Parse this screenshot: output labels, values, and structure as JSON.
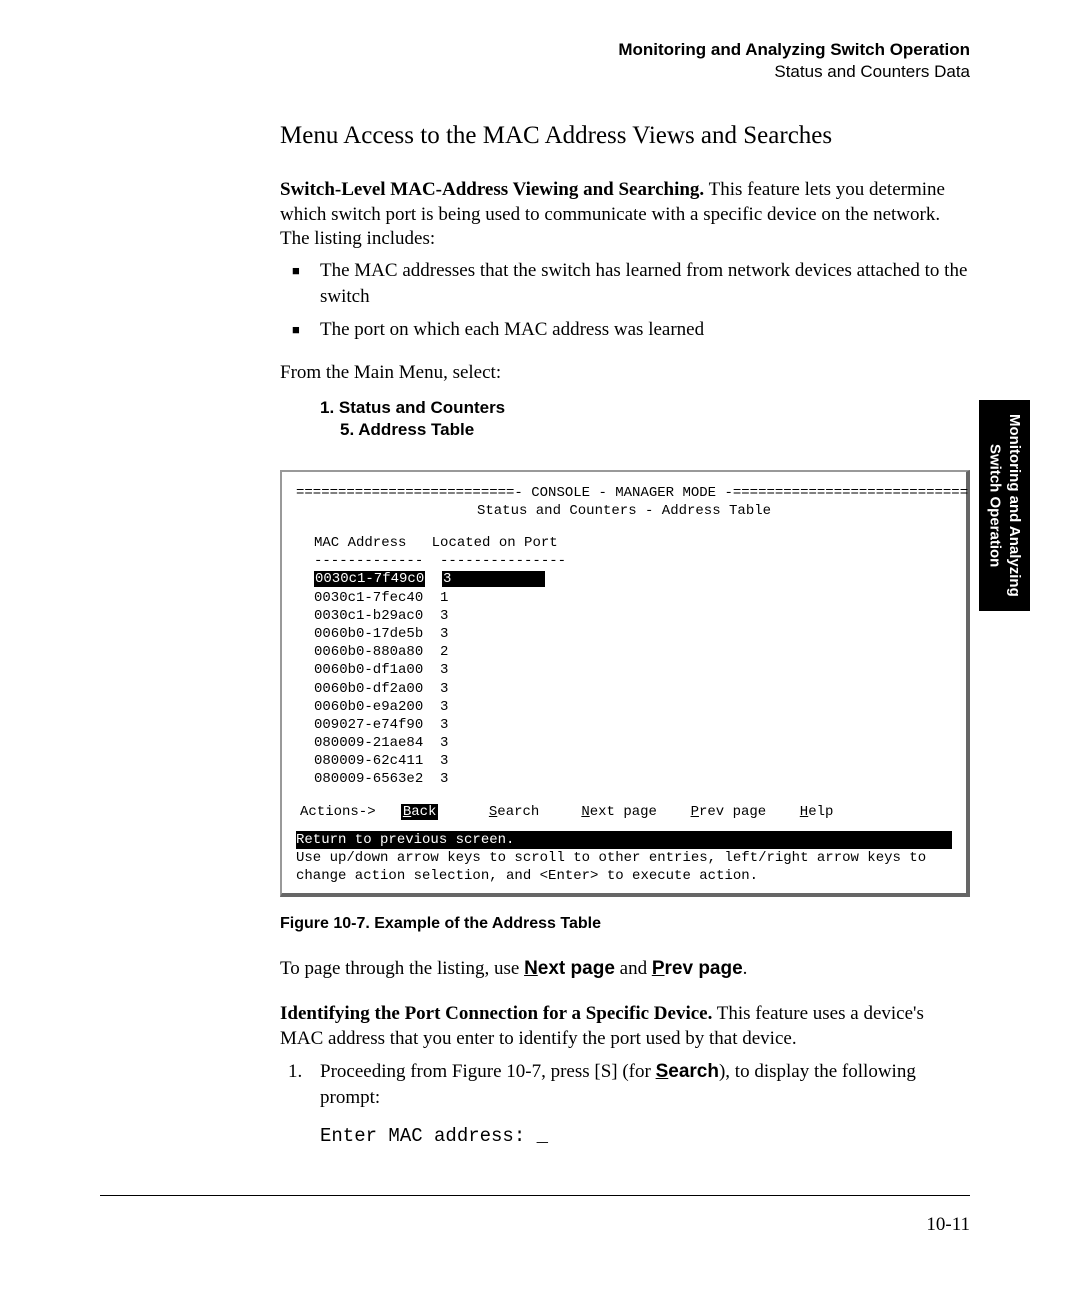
{
  "header": {
    "title": "Monitoring and Analyzing Switch Operation",
    "subtitle": "Status and Counters Data"
  },
  "section_heading": "Menu Access to the MAC Address Views and Searches",
  "intro_bold": "Switch-Level MAC-Address Viewing and Searching.",
  "intro_rest": "  This feature lets you determine which switch port is being used to communicate with a specific device on the network. The listing includes:",
  "bullets": [
    "The MAC addresses that the switch has learned from network devices attached to the switch",
    "The port on which each MAC address was learned"
  ],
  "from_menu": "From the Main Menu, select:",
  "menu_path_1": "1. Status and Counters",
  "menu_path_2": "5. Address Table",
  "console": {
    "header_line": "==========================- CONSOLE - MANAGER MODE -============================",
    "title": "Status and Counters - Address Table",
    "col1": "MAC Address",
    "col2": "Located on Port",
    "divider": "-------------  ---------------",
    "rows": [
      {
        "mac": "0030c1-7f49c0",
        "port": "3",
        "selected": true
      },
      {
        "mac": "0030c1-7fec40",
        "port": "1",
        "selected": false
      },
      {
        "mac": "0030c1-b29ac0",
        "port": "3",
        "selected": false
      },
      {
        "mac": "0060b0-17de5b",
        "port": "3",
        "selected": false
      },
      {
        "mac": "0060b0-880a80",
        "port": "2",
        "selected": false
      },
      {
        "mac": "0060b0-df1a00",
        "port": "3",
        "selected": false
      },
      {
        "mac": "0060b0-df2a00",
        "port": "3",
        "selected": false
      },
      {
        "mac": "0060b0-e9a200",
        "port": "3",
        "selected": false
      },
      {
        "mac": "009027-e74f90",
        "port": "3",
        "selected": false
      },
      {
        "mac": "080009-21ae84",
        "port": "3",
        "selected": false
      },
      {
        "mac": "080009-62c411",
        "port": "3",
        "selected": false
      },
      {
        "mac": "080009-6563e2",
        "port": "3",
        "selected": false
      }
    ],
    "actions_label": "Actions->",
    "actions": [
      "Back",
      "Search",
      "Next page",
      "Prev page",
      "Help"
    ],
    "status_inv": "Return to previous screen.",
    "help1": "Use up/down arrow keys to scroll to other entries, left/right arrow keys to",
    "help2": "change action selection, and <Enter> to execute action."
  },
  "figure_caption": "Figure 10-7.  Example of the Address Table",
  "paging_pre": "To page through the listing, use ",
  "paging_next": "Next page",
  "paging_and": " and ",
  "paging_prev": "Prev page",
  "paging_post": ".",
  "identify_bold": "Identifying the Port Connection for a Specific Device.",
  "identify_rest": "  This feature uses a device's MAC address that you enter to identify the port used by that device.",
  "step_num": "1.",
  "step1_pre": "Proceeding from Figure 10-7, press [S] (for ",
  "step1_search": "Search",
  "step1_post": "), to display the following prompt:",
  "code_line": "Enter MAC address: _",
  "side_tab_1": "Monitoring and Analyzing",
  "side_tab_2": "Switch Operation",
  "page_number": "10-11"
}
